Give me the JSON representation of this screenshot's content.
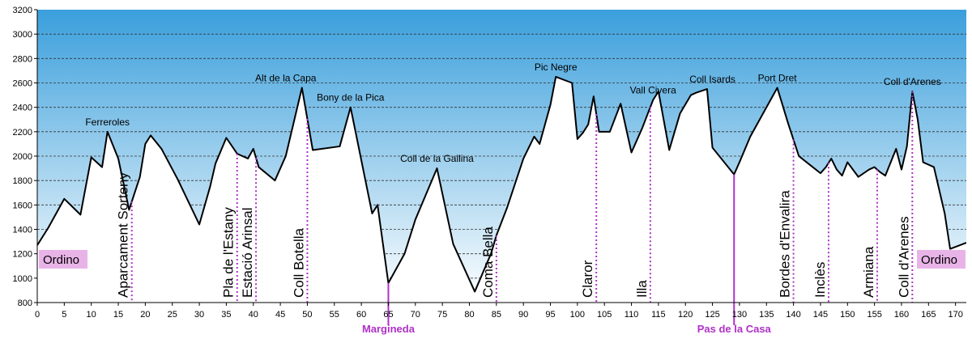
{
  "chart_data": {
    "type": "area",
    "title": "",
    "xlabel": "",
    "ylabel": "",
    "xlim": [
      0,
      172
    ],
    "ylim": [
      800,
      3200
    ],
    "x_ticks": [
      0,
      5,
      10,
      15,
      20,
      25,
      30,
      35,
      40,
      45,
      50,
      55,
      60,
      65,
      70,
      75,
      80,
      85,
      90,
      95,
      100,
      105,
      110,
      115,
      120,
      125,
      130,
      135,
      140,
      145,
      150,
      155,
      160,
      165,
      170
    ],
    "y_ticks": [
      800,
      1000,
      1200,
      1400,
      1600,
      1800,
      2000,
      2200,
      2400,
      2600,
      2800,
      3000,
      3200
    ],
    "grid": "horizontal-dashed",
    "colors": {
      "fill_top": "#4aa8df",
      "fill_bottom": "#ffffff",
      "line": "#000000",
      "marker": "#b030c8"
    },
    "series": [
      {
        "x": [
          0,
          2,
          5,
          8,
          10,
          12,
          13,
          15,
          17,
          19,
          20,
          21,
          23,
          26,
          30,
          32,
          33,
          35,
          37,
          38,
          39,
          40,
          41,
          44,
          46,
          49,
          51,
          56,
          58,
          62,
          63,
          65,
          68,
          70,
          74,
          77,
          81,
          84,
          85,
          87,
          90,
          92,
          93,
          95,
          96,
          99,
          100,
          101,
          102,
          103,
          104,
          106,
          108,
          110,
          112,
          114,
          115,
          117,
          119,
          121,
          122,
          124,
          125,
          129,
          130,
          132,
          135,
          137,
          139,
          141,
          143,
          145,
          146,
          147,
          148,
          149,
          150,
          152,
          154,
          155,
          156,
          157,
          159,
          160,
          161,
          162,
          163,
          164,
          166,
          168,
          169,
          172
        ],
        "y": [
          1270,
          1410,
          1650,
          1520,
          1990,
          1910,
          2200,
          1980,
          1560,
          1830,
          2100,
          2170,
          2060,
          1810,
          1440,
          1750,
          1940,
          2150,
          2020,
          2000,
          1980,
          2060,
          1910,
          1800,
          2000,
          2560,
          2050,
          2080,
          2400,
          1530,
          1600,
          960,
          1200,
          1480,
          1900,
          1280,
          890,
          1200,
          1350,
          1580,
          1980,
          2160,
          2100,
          2420,
          2650,
          2600,
          2140,
          2190,
          2260,
          2490,
          2200,
          2200,
          2430,
          2030,
          2230,
          2460,
          2530,
          2050,
          2350,
          2500,
          2520,
          2550,
          2070,
          1850,
          1950,
          2160,
          2400,
          2560,
          2270,
          2000,
          1930,
          1860,
          1910,
          1980,
          1890,
          1840,
          1950,
          1830,
          1890,
          1910,
          1870,
          1840,
          2060,
          1890,
          2080,
          2530,
          2300,
          1950,
          1910,
          1530,
          1240,
          1290
        ]
      }
    ],
    "peak_labels": [
      {
        "text": "Ferreroles",
        "x": 13,
        "y": 2200
      },
      {
        "text": "Alt de la Capa",
        "x": 46,
        "y": 2560
      },
      {
        "text": "Bony de la Pica",
        "x": 58,
        "y": 2400
      },
      {
        "text": "Coll de la Gallina",
        "x": 74,
        "y": 1900
      },
      {
        "text": "Pic Negre",
        "x": 96,
        "y": 2650
      },
      {
        "text": "Vall Civera",
        "x": 114,
        "y": 2460
      },
      {
        "text": "Coll Isards",
        "x": 125,
        "y": 2550
      },
      {
        "text": "Port Dret",
        "x": 137,
        "y": 2560
      },
      {
        "text": "Coll d'Arenes",
        "x": 162,
        "y": 2530
      }
    ],
    "waypoints": [
      {
        "text": "Aparcament Sorteny",
        "x": 17.5
      },
      {
        "text": "Pla de l'Estany",
        "x": 37
      },
      {
        "text": "Estació Arinsal",
        "x": 40.5
      },
      {
        "text": "Coll Botella",
        "x": 50
      },
      {
        "text": "Coma Bella",
        "x": 85
      },
      {
        "text": "Claror",
        "x": 103.5
      },
      {
        "text": "Illa",
        "x": 113.5
      },
      {
        "text": "Bordes d'Envalira",
        "x": 140
      },
      {
        "text": "Inclès",
        "x": 146.5
      },
      {
        "text": "Armiana",
        "x": 155.5
      },
      {
        "text": "Coll d'Arenes",
        "x": 162
      }
    ],
    "stages": [
      {
        "text": "Margineda",
        "x": 65
      },
      {
        "text": "Pas de la Casa",
        "x": 129
      }
    ],
    "endpoints": [
      {
        "text": "Ordino",
        "side": "left"
      },
      {
        "text": "Ordino",
        "side": "right"
      }
    ]
  }
}
